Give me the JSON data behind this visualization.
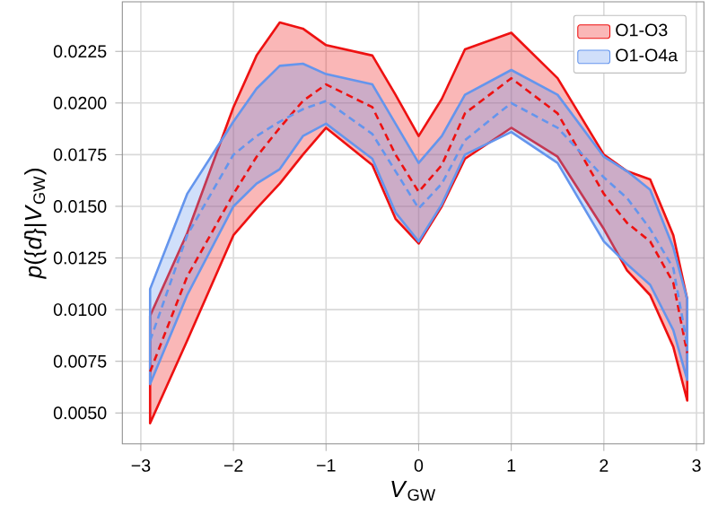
{
  "chart_data": {
    "type": "line",
    "xlabel": "*V*$_{GW}$",
    "ylabel": "*p*({*d*}|*V*$_{GW}$)",
    "x": [
      -2.9,
      -2.5,
      -2,
      -1.75,
      -1.5,
      -1.25,
      -1,
      -0.5,
      -0.25,
      0,
      0.25,
      0.5,
      1,
      1.5,
      2,
      2.25,
      2.5,
      2.75,
      2.9
    ],
    "series": [
      {
        "name": "O1-O3",
        "color": "#ee1111",
        "line_style": "dashed",
        "values": [
          0.007,
          0.0116,
          0.0156,
          0.0174,
          0.0188,
          0.0201,
          0.0209,
          0.0198,
          0.0175,
          0.0157,
          0.017,
          0.0195,
          0.0212,
          0.0195,
          0.0156,
          0.0142,
          0.0133,
          0.0113,
          0.0079
        ],
        "lower": [
          0.0045,
          0.0085,
          0.0136,
          0.0149,
          0.0161,
          0.0175,
          0.0188,
          0.017,
          0.0144,
          0.0132,
          0.015,
          0.0173,
          0.0188,
          0.0174,
          0.0139,
          0.0119,
          0.0107,
          0.0082,
          0.0056
        ],
        "upper": [
          0.0097,
          0.0137,
          0.0198,
          0.0223,
          0.0239,
          0.0236,
          0.0228,
          0.0223,
          0.0204,
          0.0184,
          0.0202,
          0.0226,
          0.0234,
          0.0212,
          0.0175,
          0.0167,
          0.0163,
          0.0136,
          0.0105
        ]
      },
      {
        "name": "O1-O4a",
        "color": "#6495ed",
        "line_style": "dashed",
        "values": [
          0.0085,
          0.0136,
          0.0175,
          0.0184,
          0.0191,
          0.0197,
          0.0201,
          0.0185,
          0.0167,
          0.0149,
          0.0161,
          0.0182,
          0.02,
          0.0188,
          0.0164,
          0.0154,
          0.0139,
          0.012,
          0.0083
        ],
        "lower": [
          0.0064,
          0.0107,
          0.015,
          0.0161,
          0.0168,
          0.0184,
          0.019,
          0.0173,
          0.0147,
          0.0133,
          0.0151,
          0.0175,
          0.0186,
          0.0171,
          0.0133,
          0.0122,
          0.0112,
          0.009,
          0.0066
        ],
        "upper": [
          0.011,
          0.0156,
          0.0191,
          0.0207,
          0.0218,
          0.0219,
          0.0214,
          0.0209,
          0.019,
          0.0171,
          0.0184,
          0.0204,
          0.0216,
          0.0204,
          0.0174,
          0.0167,
          0.0158,
          0.013,
          0.0105
        ]
      }
    ],
    "xlim": [
      -3.2,
      3.08
    ],
    "ylim": [
      0.0035,
      0.0249
    ],
    "xticks": [
      {
        "value": -3,
        "label": "−3"
      },
      {
        "value": -2,
        "label": "−2"
      },
      {
        "value": -1,
        "label": "−1"
      },
      0,
      1,
      2,
      3
    ],
    "yticks": [
      {
        "value": 0.005,
        "label": "0.0050"
      },
      {
        "value": 0.0075,
        "label": "0.0075"
      },
      {
        "value": 0.01,
        "label": "0.0100"
      },
      {
        "value": 0.0125,
        "label": "0.0125"
      },
      {
        "value": 0.015,
        "label": "0.0150"
      },
      {
        "value": 0.0175,
        "label": "0.0175"
      },
      {
        "value": 0.02,
        "label": "0.0200"
      },
      {
        "value": 0.0225,
        "label": "0.0225"
      }
    ],
    "grid": true,
    "legend": "top right"
  }
}
